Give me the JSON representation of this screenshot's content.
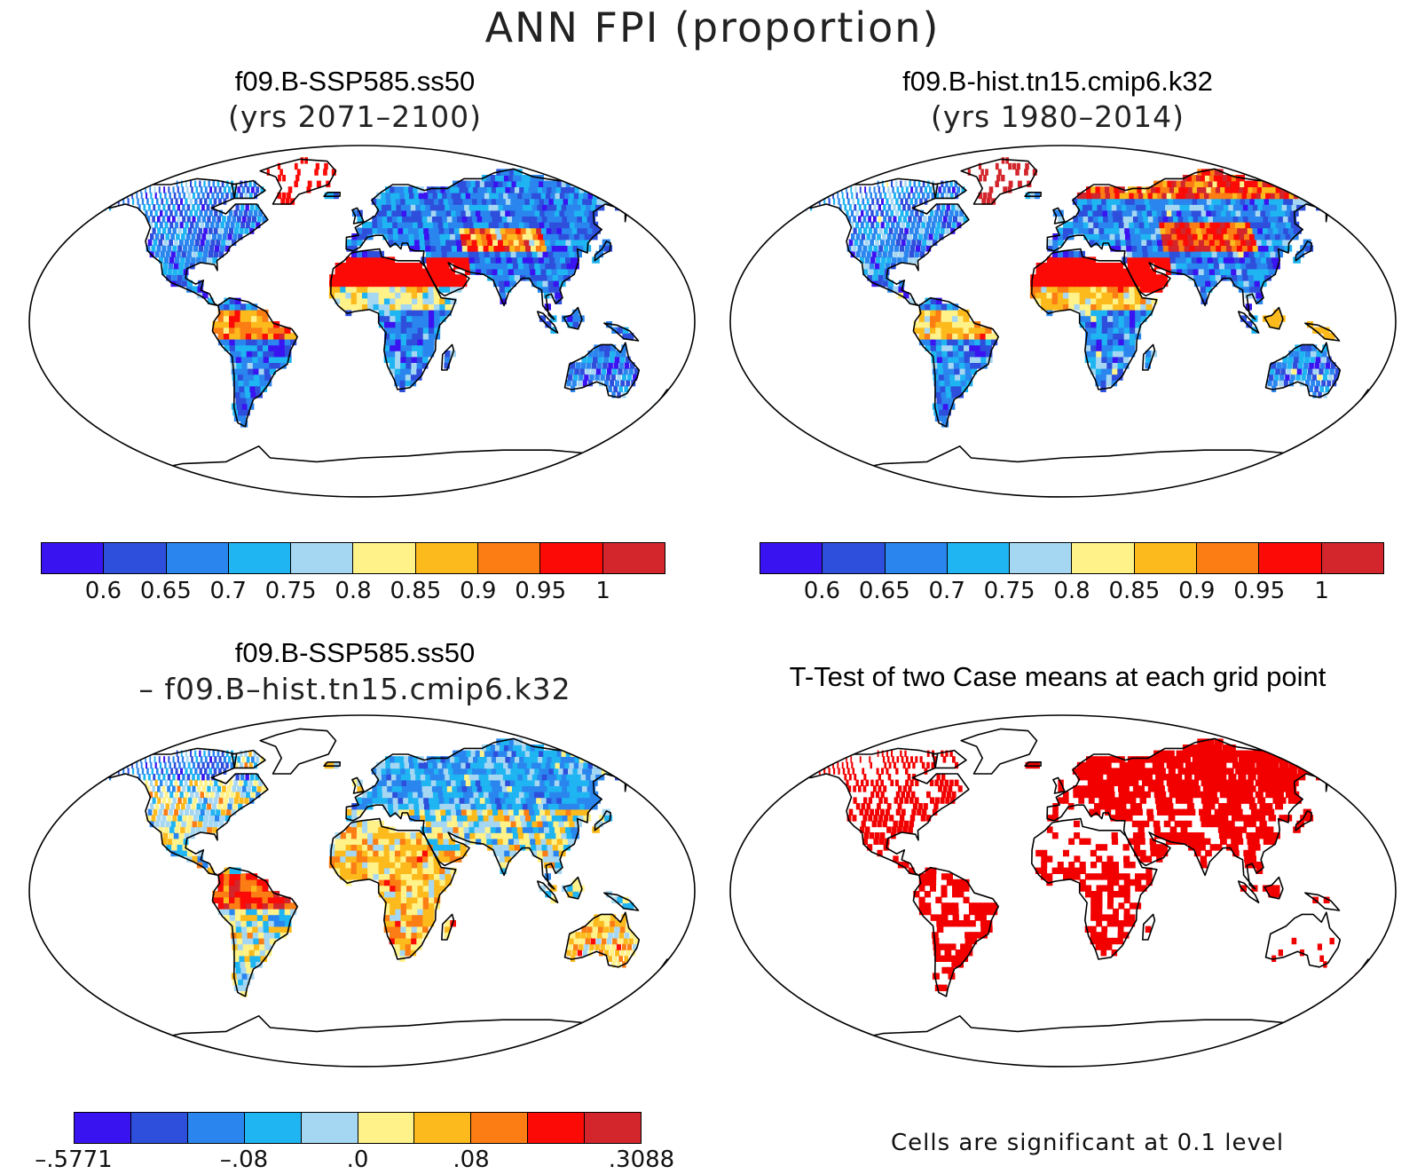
{
  "figure": {
    "title": "ANN FPI (proportion)"
  },
  "panels": {
    "top_left": {
      "title": "f09.B-SSP585.ss50",
      "subtitle": "(yrs 2071–2100)"
    },
    "top_right": {
      "title": "f09.B-hist.tn15.cmip6.k32",
      "subtitle": "(yrs 1980–2014)"
    },
    "bottom_left": {
      "title": "f09.B-SSP585.ss50",
      "subtitle": "– f09.B–hist.tn15.cmip6.k32"
    },
    "bottom_right": {
      "title": "T-Test of two Case means at each grid point",
      "note": "Cells are significant at 0.1 level"
    }
  },
  "colorbars": {
    "absolute": {
      "colors": [
        "#3a14f0",
        "#2e4fdc",
        "#2a86ee",
        "#1fb4f2",
        "#a6d7f2",
        "#fff289",
        "#fcba1c",
        "#fb7d14",
        "#fb0a06",
        "#d2262c"
      ],
      "tick_labels": [
        "0.6",
        "0.65",
        "0.7",
        "0.75",
        "0.8",
        "0.85",
        "0.9",
        "0.95",
        "1"
      ]
    },
    "difference": {
      "colors": [
        "#3a14f0",
        "#2e4fdc",
        "#2a86ee",
        "#1fb4f2",
        "#a6d7f2",
        "#fff289",
        "#fcba1c",
        "#fb7d14",
        "#fb0a06",
        "#d2262c"
      ],
      "tick_labels": [
        "–.5771",
        "–.08",
        ".0",
        ".08",
        ".3088"
      ]
    }
  },
  "significance_color": "#f20000"
}
